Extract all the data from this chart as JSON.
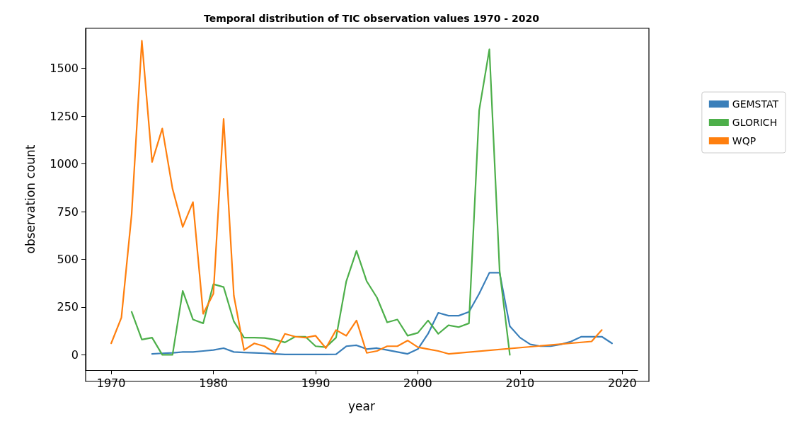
{
  "chart_data": {
    "type": "line",
    "title": "Temporal distribution of TIC observation values 1970 - 2020",
    "xlabel": "year",
    "ylabel": "observation count",
    "xlim": [
      1967.5,
      2021.5
    ],
    "xticks": [
      1970,
      1980,
      1990,
      2000,
      2010,
      2020
    ],
    "ylim": [
      -80,
      1710
    ],
    "yticks": [
      0,
      250,
      500,
      750,
      1000,
      1250,
      1500
    ],
    "grid": false,
    "legend": "right",
    "marker": "none",
    "line_style": "solid",
    "series": [
      {
        "name": "GEMSTAT",
        "color": "#3a7fba",
        "x": [
          1974,
          1975,
          1976,
          1977,
          1978,
          1979,
          1980,
          1981,
          1982,
          1983,
          1984,
          1985,
          1986,
          1987,
          1988,
          1989,
          1990,
          1991,
          1992,
          1993,
          1994,
          1995,
          1996,
          1997,
          1998,
          1999,
          2000,
          2001,
          2002,
          2003,
          2004,
          2005,
          2006,
          2007,
          2008,
          2009,
          2010,
          2011,
          2012,
          2013,
          2014,
          2015,
          2016,
          2017,
          2018,
          2019
        ],
        "values": [
          5,
          8,
          10,
          15,
          15,
          20,
          25,
          35,
          15,
          12,
          10,
          8,
          5,
          2,
          2,
          2,
          2,
          2,
          3,
          45,
          50,
          30,
          35,
          25,
          15,
          5,
          30,
          110,
          220,
          205,
          205,
          225,
          320,
          430,
          430,
          150,
          90,
          55,
          45,
          45,
          55,
          70,
          95,
          95,
          95,
          60
        ]
      },
      {
        "name": "GLORICH",
        "color": "#4daf4a",
        "x": [
          1972,
          1973,
          1974,
          1975,
          1976,
          1977,
          1978,
          1979,
          1980,
          1981,
          1982,
          1983,
          1984,
          1985,
          1986,
          1987,
          1988,
          1989,
          1990,
          1991,
          1992,
          1993,
          1994,
          1995,
          1996,
          1997,
          1998,
          1999,
          2000,
          2001,
          2002,
          2003,
          2004,
          2005,
          2006,
          2007,
          2008,
          2009
        ],
        "values": [
          225,
          80,
          90,
          0,
          0,
          335,
          185,
          165,
          370,
          355,
          175,
          90,
          90,
          88,
          80,
          65,
          95,
          95,
          45,
          40,
          90,
          385,
          545,
          385,
          300,
          170,
          185,
          100,
          115,
          180,
          110,
          155,
          145,
          165,
          1280,
          1600,
          440,
          0
        ]
      },
      {
        "name": "WQP",
        "color": "#ff7f0e",
        "x": [
          1970,
          1971,
          1972,
          1973,
          1974,
          1975,
          1976,
          1977,
          1978,
          1979,
          1980,
          1981,
          1982,
          1983,
          1984,
          1985,
          1986,
          1987,
          1988,
          1989,
          1990,
          1991,
          1992,
          1993,
          1994,
          1995,
          1996,
          1997,
          1998,
          1999,
          2000,
          2001,
          2002,
          2003,
          2017,
          2018
        ],
        "values": [
          60,
          195,
          735,
          1645,
          1010,
          1185,
          870,
          670,
          800,
          215,
          320,
          1235,
          310,
          25,
          60,
          45,
          10,
          110,
          95,
          90,
          100,
          35,
          130,
          100,
          180,
          10,
          20,
          45,
          45,
          75,
          40,
          30,
          20,
          5,
          70,
          130
        ]
      }
    ]
  }
}
